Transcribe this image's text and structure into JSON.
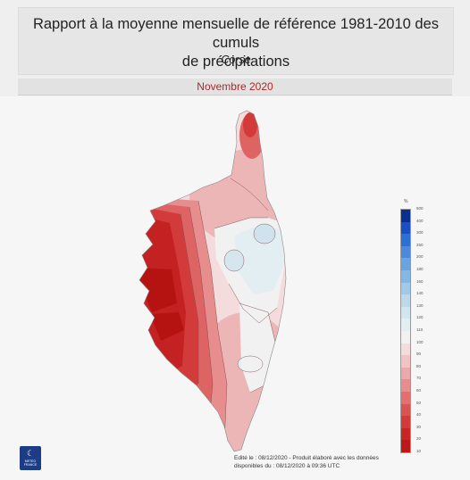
{
  "header": {
    "title_line1": "Rapport à la moyenne mensuelle de référence 1981-2010 des cumuls",
    "title_line2": "de précipitations",
    "region": "Corse"
  },
  "period": "Novembre 2020",
  "legend": {
    "unit": "%",
    "ticks": [
      "500",
      "400",
      "300",
      "250",
      "200",
      "180",
      "160",
      "140",
      "130",
      "120",
      "110",
      "100",
      "90",
      "80",
      "70",
      "60",
      "50",
      "40",
      "30",
      "20",
      "10"
    ],
    "colors": [
      "#0b2f8e",
      "#1a4fc4",
      "#2e6fd6",
      "#4c8ad9",
      "#6aa3dd",
      "#86b7e2",
      "#a2c9e7",
      "#bcd9ec",
      "#d2e6f0",
      "#e3eef3",
      "#f2f1f1",
      "#f4dcdc",
      "#f1c3c3",
      "#eda9a9",
      "#e88d8d",
      "#e27070",
      "#db5454",
      "#d33b3b",
      "#c92525",
      "#be1717"
    ]
  },
  "footer": {
    "line1": "Edité le : 08/12/2020 - Produit élaboré avec les données",
    "line2": "disponibles du : 08/12/2020 à 09:36 UTC"
  },
  "logo": {
    "line1": "METEO",
    "line2": "FRANCE"
  }
}
